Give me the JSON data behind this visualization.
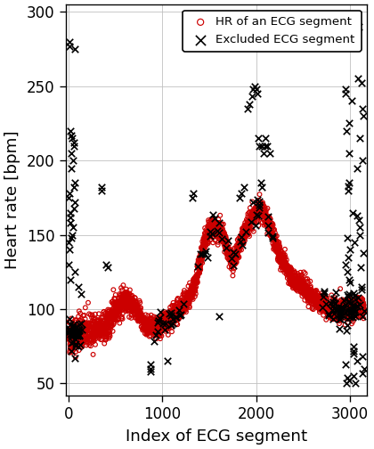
{
  "xlabel": "Index of ECG segment",
  "ylabel": "Heart rate [bpm]",
  "xlim": [
    -30,
    3180
  ],
  "ylim": [
    42,
    305
  ],
  "yticks": [
    50,
    100,
    150,
    200,
    250,
    300
  ],
  "xticks": [
    0,
    1000,
    2000,
    3000
  ],
  "hr_color": "#cc0000",
  "excluded_color": "#000000",
  "legend_hr": "HR of an ECG segment",
  "legend_excluded": "Excluded ECG segment",
  "seed": 42,
  "figsize": [
    3.5,
    4.2
  ],
  "dpi": 120
}
